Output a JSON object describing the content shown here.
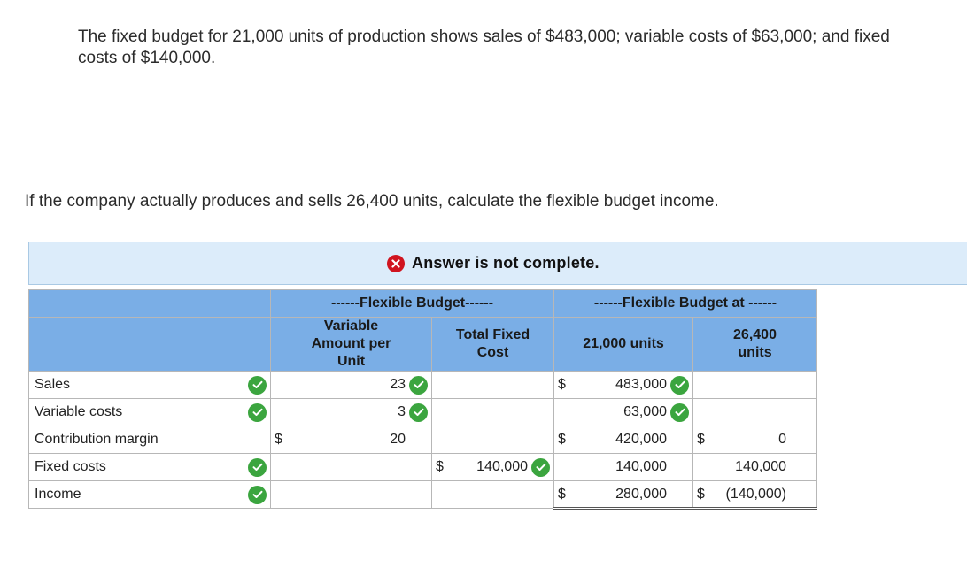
{
  "problem": {
    "paragraph1": "The fixed budget for 21,000 units of production shows sales of $483,000; variable costs of $63,000; and fixed costs of $140,000.",
    "paragraph2": "If the company actually produces and sells 26,400 units, calculate the flexible budget income."
  },
  "banner": {
    "text": "Answer is not complete.",
    "icon": "x-circle-icon",
    "color": "#d0141f"
  },
  "table": {
    "group_headers": {
      "flexible_budget": "------Flexible Budget------",
      "flexible_budget_at": "------Flexible Budget at ------"
    },
    "column_headers": {
      "variable_amount": "Variable Amount per Unit",
      "total_fixed": "Total Fixed Cost",
      "units_a": "21,000 units",
      "units_b": "26,400 units"
    },
    "rows": [
      {
        "label": "Sales",
        "var_dollar": "",
        "var": "23",
        "fixed_dollar": "",
        "fixed": "",
        "a_dollar": "$",
        "a": "483,000",
        "b_dollar": "",
        "b": ""
      },
      {
        "label": "Variable costs",
        "var_dollar": "",
        "var": "3",
        "fixed_dollar": "",
        "fixed": "",
        "a_dollar": "",
        "a": "63,000",
        "b_dollar": "",
        "b": ""
      },
      {
        "label": "Contribution margin",
        "var_dollar": "$",
        "var": "20",
        "fixed_dollar": "",
        "fixed": "",
        "a_dollar": "$",
        "a": "420,000",
        "b_dollar": "$",
        "b": "0"
      },
      {
        "label": "Fixed costs",
        "var_dollar": "",
        "var": "",
        "fixed_dollar": "$",
        "fixed": "140,000",
        "a_dollar": "",
        "a": "140,000",
        "b_dollar": "",
        "b": "140,000"
      },
      {
        "label": "Income",
        "var_dollar": "",
        "var": "",
        "fixed_dollar": "",
        "fixed": "",
        "a_dollar": "$",
        "a": "280,000",
        "b_dollar": "$",
        "b": "(140,000)"
      }
    ]
  },
  "colors": {
    "header_blue": "#7aaee6",
    "banner_bg": "#dcecfa",
    "check_green": "#3ba53f"
  }
}
